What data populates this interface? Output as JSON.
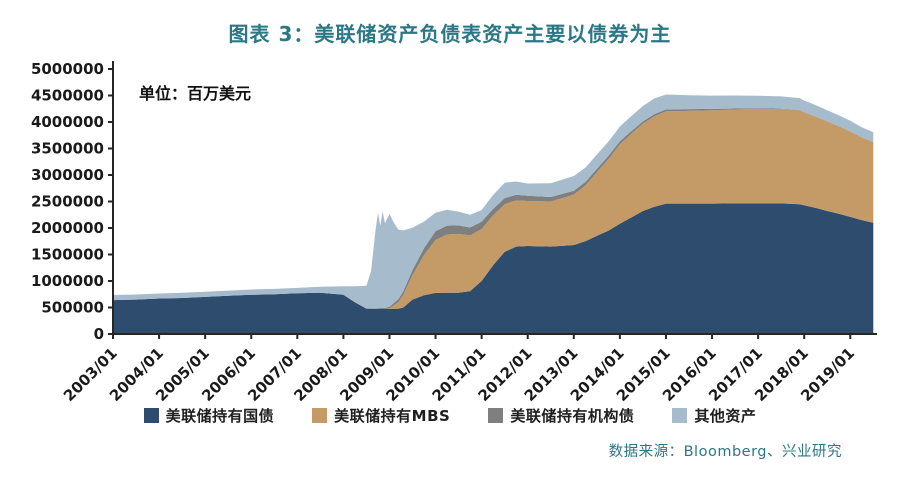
{
  "header": {
    "title": "图表 3：美联储资产负债表资产主要以债券为主"
  },
  "footer": {
    "source": "数据来源：Bloomberg、兴业研究"
  },
  "theme": {
    "title_color": "#2a7886",
    "source_color": "#2a7886",
    "axis_color": "#262626"
  },
  "chart_data": {
    "type": "area",
    "stacked": true,
    "title": "图表 3：美联储资产负债表资产主要以债券为主",
    "unit_label": "单位：百万美元",
    "grid": false,
    "legend_position": "bottom",
    "xlim": [
      2003.0,
      2019.58
    ],
    "ylim": [
      0,
      5000000
    ],
    "yticks": [
      0,
      500000,
      1000000,
      1500000,
      2000000,
      2500000,
      3000000,
      3500000,
      4000000,
      4500000,
      5000000
    ],
    "xticks": [
      {
        "x": 2003,
        "label": "2003/01"
      },
      {
        "x": 2004,
        "label": "2004/01"
      },
      {
        "x": 2005,
        "label": "2005/01"
      },
      {
        "x": 2006,
        "label": "2006/01"
      },
      {
        "x": 2007,
        "label": "2007/01"
      },
      {
        "x": 2008,
        "label": "2008/01"
      },
      {
        "x": 2009,
        "label": "2009/01"
      },
      {
        "x": 2010,
        "label": "2010/01"
      },
      {
        "x": 2011,
        "label": "2011/01"
      },
      {
        "x": 2012,
        "label": "2012/01"
      },
      {
        "x": 2013,
        "label": "2013/01"
      },
      {
        "x": 2014,
        "label": "2014/01"
      },
      {
        "x": 2015,
        "label": "2015/01"
      },
      {
        "x": 2016,
        "label": "2016/01"
      },
      {
        "x": 2017,
        "label": "2017/01"
      },
      {
        "x": 2018,
        "label": "2018/01"
      },
      {
        "x": 2019,
        "label": "2019/01"
      }
    ],
    "x": [
      2003.0,
      2003.5,
      2004.0,
      2004.5,
      2005.0,
      2005.5,
      2006.0,
      2006.5,
      2007.0,
      2007.5,
      2008.0,
      2008.25,
      2008.5,
      2008.6,
      2008.7,
      2008.75,
      2008.8,
      2008.85,
      2008.9,
      2009.0,
      2009.1,
      2009.2,
      2009.3,
      2009.5,
      2009.75,
      2010.0,
      2010.25,
      2010.5,
      2010.75,
      2011.0,
      2011.25,
      2011.5,
      2011.75,
      2012.0,
      2012.5,
      2013.0,
      2013.25,
      2013.5,
      2013.75,
      2014.0,
      2014.25,
      2014.5,
      2014.75,
      2015.0,
      2015.5,
      2016.0,
      2016.5,
      2017.0,
      2017.5,
      2017.9,
      2018.0,
      2018.25,
      2018.5,
      2018.75,
      2019.0,
      2019.25,
      2019.5
    ],
    "series": [
      {
        "id": "treasuries",
        "name": "美联储持有国债",
        "color": "#2e4d6e",
        "values": [
          640000,
          650000,
          670000,
          680000,
          700000,
          720000,
          740000,
          750000,
          770000,
          780000,
          740000,
          600000,
          480000,
          476000,
          476000,
          476000,
          476000,
          476000,
          476000,
          475000,
          475000,
          480000,
          500000,
          650000,
          730000,
          776000,
          777000,
          779000,
          810000,
          1000000,
          1300000,
          1550000,
          1650000,
          1660000,
          1650000,
          1680000,
          1750000,
          1850000,
          1950000,
          2080000,
          2200000,
          2320000,
          2400000,
          2460000,
          2460000,
          2460000,
          2465000,
          2465000,
          2465000,
          2450000,
          2430000,
          2380000,
          2320000,
          2270000,
          2210000,
          2150000,
          2100000
        ]
      },
      {
        "id": "mbs",
        "name": "美联储持有MBS",
        "color": "#c49a66",
        "values": [
          0,
          0,
          0,
          0,
          0,
          0,
          0,
          0,
          0,
          0,
          0,
          0,
          0,
          0,
          0,
          0,
          0,
          0,
          0,
          10000,
          70000,
          130000,
          240000,
          460000,
          760000,
          1000000,
          1100000,
          1110000,
          1050000,
          980000,
          940000,
          900000,
          870000,
          850000,
          850000,
          950000,
          1050000,
          1200000,
          1350000,
          1500000,
          1580000,
          1650000,
          1710000,
          1740000,
          1750000,
          1760000,
          1770000,
          1780000,
          1780000,
          1770000,
          1750000,
          1720000,
          1690000,
          1650000,
          1610000,
          1560000,
          1520000
        ]
      },
      {
        "id": "agency",
        "name": "美联储持有机构债",
        "color": "#7f7f7f",
        "values": [
          0,
          0,
          0,
          0,
          0,
          0,
          0,
          0,
          0,
          0,
          0,
          0,
          0,
          5000,
          10000,
          12000,
          14000,
          15000,
          16000,
          30000,
          45000,
          55000,
          65000,
          95000,
          130000,
          165000,
          168000,
          160000,
          150000,
          140000,
          125000,
          115000,
          107000,
          100000,
          85000,
          72000,
          68000,
          64000,
          60000,
          55000,
          48000,
          42000,
          40000,
          38000,
          33000,
          28000,
          20000,
          12000,
          8000,
          6000,
          5000,
          4000,
          3500,
          3000,
          2800,
          2500,
          2300
        ]
      },
      {
        "id": "other",
        "name": "其他资产",
        "color": "#a6bccd",
        "values": [
          95000,
          95000,
          95000,
          97000,
          98000,
          98000,
          100000,
          100000,
          100000,
          110000,
          160000,
          300000,
          430000,
          700000,
          1500000,
          1800000,
          1550000,
          1820000,
          1600000,
          1750000,
          1500000,
          1300000,
          1150000,
          800000,
          500000,
          350000,
          300000,
          260000,
          240000,
          220000,
          260000,
          290000,
          250000,
          230000,
          260000,
          280000,
          270000,
          270000,
          270000,
          280000,
          285000,
          290000,
          295000,
          280000,
          260000,
          250000,
          245000,
          240000,
          230000,
          225000,
          220000,
          215000,
          210000,
          205000,
          200000,
          190000,
          185000
        ]
      }
    ]
  }
}
